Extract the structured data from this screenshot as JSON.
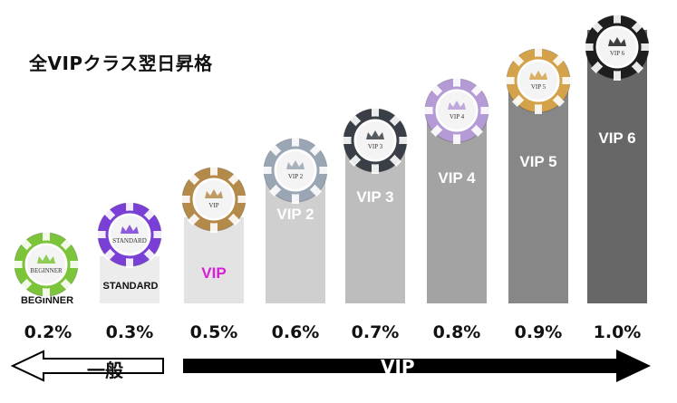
{
  "title": "全VIPクラス翌日昇格",
  "tiers": [
    {
      "name": "BEGINNER",
      "chip_text": "BEGINNER",
      "rate": "0.2%",
      "chip_color": "#7cc43a",
      "bar_color": null,
      "label_color": "#111111"
    },
    {
      "name": "STANDARD",
      "chip_text": "STANDARD",
      "rate": "0.3%",
      "chip_color": "#7a3fd6",
      "bar_color": "#ececec",
      "label_color": "#111111"
    },
    {
      "name": "VIP",
      "chip_text": "VIP",
      "rate": "0.5%",
      "chip_color": "#b48a4a",
      "bar_color": "#e3e3e3",
      "label_color": "#d81fd8"
    },
    {
      "name": "VIP 2",
      "chip_text": "VIP 2",
      "rate": "0.6%",
      "chip_color": "#9aa6b3",
      "bar_color": "#cfcfcf",
      "label_color": "#ffffff"
    },
    {
      "name": "VIP 3",
      "chip_text": "VIP 3",
      "rate": "0.7%",
      "chip_color": "#3a3f47",
      "bar_color": "#bdbdbd",
      "label_color": "#ffffff"
    },
    {
      "name": "VIP 4",
      "chip_text": "VIP 4",
      "rate": "0.8%",
      "chip_color": "#b59bd6",
      "bar_color": "#a3a3a3",
      "label_color": "#ffffff"
    },
    {
      "name": "VIP 5",
      "chip_text": "VIP 5",
      "rate": "0.9%",
      "chip_color": "#d4a24a",
      "bar_color": "#878787",
      "label_color": "#ffffff"
    },
    {
      "name": "VIP 6",
      "chip_text": "VIP 6",
      "rate": "1.0%",
      "chip_color": "#1e1e1e",
      "bar_color": "#676767",
      "label_color": "#ffffff"
    }
  ],
  "arrows": {
    "general_label": "一般",
    "vip_label": "VIP"
  },
  "colors": {
    "arrow_fill": "#000000",
    "general_arrow_fill": "#ffffff"
  }
}
